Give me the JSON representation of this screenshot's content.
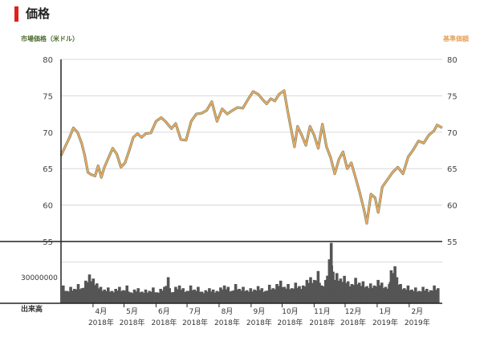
{
  "page": {
    "title": "価格",
    "left_axis_title": "市場価格（米ドル）",
    "right_axis_title": "基準価額",
    "volume_label": "出来高"
  },
  "colors": {
    "accent": "#e0201a",
    "market_line": "#7a8a6a",
    "nav_line": "#f0a860",
    "volume_bars": "#555555",
    "grid": "#d8d8d8",
    "axis": "#222222"
  },
  "chart_data": {
    "type": "line",
    "title": "",
    "ylabel_left": "市場価格（米ドル）",
    "ylabel_right": "基準価額",
    "ylim": [
      55,
      80
    ],
    "yticks": [
      55,
      60,
      65,
      70,
      75,
      80
    ],
    "x_start": "2018-03-01",
    "x_end": "2019-03-05",
    "x_ticks": [
      {
        "date": "2018-04-01",
        "month": "4月",
        "year": "2018年"
      },
      {
        "date": "2018-05-01",
        "month": "5月",
        "year": "2018年"
      },
      {
        "date": "2018-06-01",
        "month": "6月",
        "year": "2018年"
      },
      {
        "date": "2018-07-01",
        "month": "7月",
        "year": "2018年"
      },
      {
        "date": "2018-08-01",
        "month": "8月",
        "year": "2018年"
      },
      {
        "date": "2018-09-01",
        "month": "9月",
        "year": "2018年"
      },
      {
        "date": "2018-10-01",
        "month": "10月",
        "year": "2018年"
      },
      {
        "date": "2018-11-01",
        "month": "11月",
        "year": "2018年"
      },
      {
        "date": "2018-12-01",
        "month": "12月",
        "year": "2018年"
      },
      {
        "date": "2019-01-01",
        "month": "1月",
        "year": "2019年"
      },
      {
        "date": "2019-02-01",
        "month": "2月",
        "year": "2019年"
      }
    ],
    "series": [
      {
        "name": "市場価格（米ドル）",
        "points": [
          [
            "2018-03-01",
            66.8
          ],
          [
            "2018-03-05",
            68.0
          ],
          [
            "2018-03-09",
            69.2
          ],
          [
            "2018-03-13",
            70.6
          ],
          [
            "2018-03-17",
            70.0
          ],
          [
            "2018-03-21",
            68.5
          ],
          [
            "2018-03-24",
            66.8
          ],
          [
            "2018-03-27",
            64.5
          ],
          [
            "2018-03-30",
            64.2
          ],
          [
            "2018-04-03",
            64.0
          ],
          [
            "2018-04-06",
            65.4
          ],
          [
            "2018-04-09",
            63.8
          ],
          [
            "2018-04-12",
            65.2
          ],
          [
            "2018-04-16",
            66.5
          ],
          [
            "2018-04-20",
            67.8
          ],
          [
            "2018-04-24",
            67.0
          ],
          [
            "2018-04-28",
            65.2
          ],
          [
            "2018-05-02",
            65.8
          ],
          [
            "2018-05-06",
            67.5
          ],
          [
            "2018-05-10",
            69.3
          ],
          [
            "2018-05-14",
            69.8
          ],
          [
            "2018-05-18",
            69.3
          ],
          [
            "2018-05-22",
            69.8
          ],
          [
            "2018-05-27",
            69.9
          ],
          [
            "2018-06-01",
            71.5
          ],
          [
            "2018-06-06",
            72.0
          ],
          [
            "2018-06-10",
            71.5
          ],
          [
            "2018-06-16",
            70.5
          ],
          [
            "2018-06-20",
            71.2
          ],
          [
            "2018-06-25",
            69.0
          ],
          [
            "2018-06-30",
            68.9
          ],
          [
            "2018-07-05",
            71.5
          ],
          [
            "2018-07-10",
            72.5
          ],
          [
            "2018-07-15",
            72.6
          ],
          [
            "2018-07-20",
            73.0
          ],
          [
            "2018-07-25",
            74.2
          ],
          [
            "2018-07-30",
            71.5
          ],
          [
            "2018-08-04",
            73.2
          ],
          [
            "2018-08-09",
            72.5
          ],
          [
            "2018-08-14",
            73.0
          ],
          [
            "2018-08-19",
            73.4
          ],
          [
            "2018-08-24",
            73.3
          ],
          [
            "2018-08-29",
            74.5
          ],
          [
            "2018-09-03",
            75.6
          ],
          [
            "2018-09-08",
            75.2
          ],
          [
            "2018-09-12",
            74.5
          ],
          [
            "2018-09-16",
            73.9
          ],
          [
            "2018-09-20",
            74.6
          ],
          [
            "2018-09-24",
            74.3
          ],
          [
            "2018-09-28",
            75.2
          ],
          [
            "2018-10-03",
            75.7
          ],
          [
            "2018-10-06",
            73.2
          ],
          [
            "2018-10-10",
            70.2
          ],
          [
            "2018-10-13",
            68.0
          ],
          [
            "2018-10-16",
            70.8
          ],
          [
            "2018-10-20",
            69.6
          ],
          [
            "2018-10-24",
            68.2
          ],
          [
            "2018-10-28",
            70.8
          ],
          [
            "2018-11-01",
            69.6
          ],
          [
            "2018-11-05",
            67.8
          ],
          [
            "2018-11-09",
            71.1
          ],
          [
            "2018-11-13",
            68.0
          ],
          [
            "2018-11-17",
            66.5
          ],
          [
            "2018-11-21",
            64.3
          ],
          [
            "2018-11-25",
            66.3
          ],
          [
            "2018-11-29",
            67.3
          ],
          [
            "2018-12-03",
            65.0
          ],
          [
            "2018-12-07",
            65.8
          ],
          [
            "2018-12-11",
            63.8
          ],
          [
            "2018-12-15",
            61.8
          ],
          [
            "2018-12-19",
            59.5
          ],
          [
            "2018-12-22",
            57.5
          ],
          [
            "2018-12-26",
            61.5
          ],
          [
            "2018-12-30",
            61.0
          ],
          [
            "2019-01-02",
            59.0
          ],
          [
            "2019-01-06",
            62.5
          ],
          [
            "2019-01-11",
            63.5
          ],
          [
            "2019-01-16",
            64.5
          ],
          [
            "2019-01-21",
            65.2
          ],
          [
            "2019-01-26",
            64.3
          ],
          [
            "2019-01-31",
            66.6
          ],
          [
            "2019-02-05",
            67.6
          ],
          [
            "2019-02-10",
            68.8
          ],
          [
            "2019-02-15",
            68.5
          ],
          [
            "2019-02-20",
            69.6
          ],
          [
            "2019-02-25",
            70.2
          ],
          [
            "2019-02-28",
            71.0
          ],
          [
            "2019-03-05",
            70.6
          ]
        ]
      },
      {
        "name": "基準価額",
        "same_as": "市場価格（米ドル）"
      }
    ],
    "volume": {
      "label": "出来高",
      "ytick": 30000000,
      "ytick_label": "30000000",
      "ymax": 45000000,
      "bars": [
        {
          "x": 0.0,
          "v": 13.0
        },
        {
          "x": 0.01,
          "v": 9.0
        },
        {
          "x": 0.02,
          "v": 12.0
        },
        {
          "x": 0.03,
          "v": 10.5
        },
        {
          "x": 0.04,
          "v": 14.0
        },
        {
          "x": 0.05,
          "v": 11.0
        },
        {
          "x": 0.06,
          "v": 16.5
        },
        {
          "x": 0.07,
          "v": 21.0
        },
        {
          "x": 0.08,
          "v": 18.0
        },
        {
          "x": 0.09,
          "v": 14.5
        },
        {
          "x": 0.1,
          "v": 12.0
        },
        {
          "x": 0.11,
          "v": 10.0
        },
        {
          "x": 0.12,
          "v": 11.5
        },
        {
          "x": 0.13,
          "v": 9.0
        },
        {
          "x": 0.14,
          "v": 10.5
        },
        {
          "x": 0.15,
          "v": 12.0
        },
        {
          "x": 0.16,
          "v": 9.5
        },
        {
          "x": 0.17,
          "v": 13.0
        },
        {
          "x": 0.18,
          "v": 8.0
        },
        {
          "x": 0.19,
          "v": 10.0
        },
        {
          "x": 0.2,
          "v": 11.0
        },
        {
          "x": 0.21,
          "v": 8.5
        },
        {
          "x": 0.22,
          "v": 10.0
        },
        {
          "x": 0.23,
          "v": 9.0
        },
        {
          "x": 0.24,
          "v": 11.5
        },
        {
          "x": 0.25,
          "v": 8.0
        },
        {
          "x": 0.26,
          "v": 10.5
        },
        {
          "x": 0.27,
          "v": 12.0
        },
        {
          "x": 0.28,
          "v": 19.0
        },
        {
          "x": 0.29,
          "v": 8.0
        },
        {
          "x": 0.3,
          "v": 12.0
        },
        {
          "x": 0.31,
          "v": 13.0
        },
        {
          "x": 0.32,
          "v": 11.0
        },
        {
          "x": 0.33,
          "v": 9.0
        },
        {
          "x": 0.34,
          "v": 13.0
        },
        {
          "x": 0.35,
          "v": 10.0
        },
        {
          "x": 0.36,
          "v": 12.0
        },
        {
          "x": 0.37,
          "v": 8.5
        },
        {
          "x": 0.38,
          "v": 9.5
        },
        {
          "x": 0.39,
          "v": 11.0
        },
        {
          "x": 0.4,
          "v": 10.0
        },
        {
          "x": 0.41,
          "v": 9.0
        },
        {
          "x": 0.42,
          "v": 11.5
        },
        {
          "x": 0.43,
          "v": 13.0
        },
        {
          "x": 0.44,
          "v": 12.0
        },
        {
          "x": 0.45,
          "v": 9.0
        },
        {
          "x": 0.46,
          "v": 14.0
        },
        {
          "x": 0.47,
          "v": 10.5
        },
        {
          "x": 0.48,
          "v": 12.0
        },
        {
          "x": 0.49,
          "v": 9.5
        },
        {
          "x": 0.5,
          "v": 11.0
        },
        {
          "x": 0.51,
          "v": 10.0
        },
        {
          "x": 0.52,
          "v": 12.5
        },
        {
          "x": 0.53,
          "v": 11.0
        },
        {
          "x": 0.54,
          "v": 9.0
        },
        {
          "x": 0.55,
          "v": 13.5
        },
        {
          "x": 0.56,
          "v": 11.0
        },
        {
          "x": 0.57,
          "v": 14.0
        },
        {
          "x": 0.58,
          "v": 16.5
        },
        {
          "x": 0.59,
          "v": 12.0
        },
        {
          "x": 0.6,
          "v": 14.0
        },
        {
          "x": 0.61,
          "v": 11.0
        },
        {
          "x": 0.62,
          "v": 15.0
        },
        {
          "x": 0.63,
          "v": 12.5
        },
        {
          "x": 0.64,
          "v": 13.0
        },
        {
          "x": 0.65,
          "v": 17.0
        },
        {
          "x": 0.66,
          "v": 19.0
        },
        {
          "x": 0.67,
          "v": 17.0
        },
        {
          "x": 0.68,
          "v": 23.5
        },
        {
          "x": 0.69,
          "v": 13.0
        },
        {
          "x": 0.7,
          "v": 17.0
        },
        {
          "x": 0.71,
          "v": 32.0
        },
        {
          "x": 0.715,
          "v": 44.0
        },
        {
          "x": 0.72,
          "v": 23.0
        },
        {
          "x": 0.725,
          "v": 17.0
        },
        {
          "x": 0.73,
          "v": 22.0
        },
        {
          "x": 0.74,
          "v": 18.0
        },
        {
          "x": 0.75,
          "v": 20.0
        },
        {
          "x": 0.76,
          "v": 16.0
        },
        {
          "x": 0.77,
          "v": 14.0
        },
        {
          "x": 0.78,
          "v": 18.5
        },
        {
          "x": 0.79,
          "v": 15.0
        },
        {
          "x": 0.8,
          "v": 16.0
        },
        {
          "x": 0.81,
          "v": 12.5
        },
        {
          "x": 0.82,
          "v": 14.5
        },
        {
          "x": 0.83,
          "v": 13.0
        },
        {
          "x": 0.84,
          "v": 17.0
        },
        {
          "x": 0.85,
          "v": 15.0
        },
        {
          "x": 0.86,
          "v": 12.0
        },
        {
          "x": 0.87,
          "v": 14.0
        },
        {
          "x": 0.875,
          "v": 24.0
        },
        {
          "x": 0.88,
          "v": 22.0
        },
        {
          "x": 0.885,
          "v": 27.0
        },
        {
          "x": 0.89,
          "v": 19.0
        },
        {
          "x": 0.9,
          "v": 14.0
        },
        {
          "x": 0.91,
          "v": 11.0
        },
        {
          "x": 0.92,
          "v": 13.0
        },
        {
          "x": 0.93,
          "v": 10.0
        },
        {
          "x": 0.94,
          "v": 11.5
        },
        {
          "x": 0.95,
          "v": 9.0
        },
        {
          "x": 0.96,
          "v": 12.0
        },
        {
          "x": 0.97,
          "v": 10.5
        },
        {
          "x": 0.98,
          "v": 9.5
        },
        {
          "x": 0.99,
          "v": 13.0
        },
        {
          "x": 1.0,
          "v": 11.0
        }
      ]
    },
    "grid": true
  }
}
